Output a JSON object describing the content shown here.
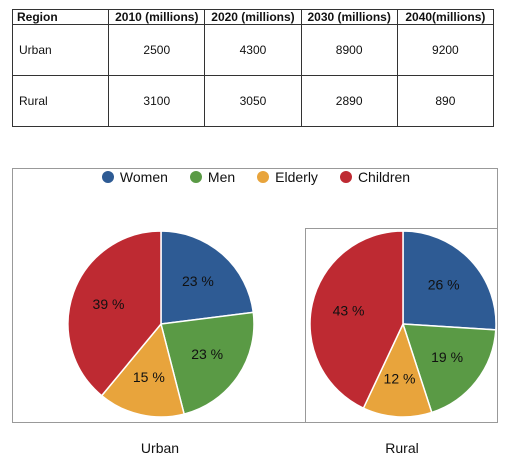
{
  "table": {
    "headers": [
      "Region",
      "2010 (millions)",
      "2020 (millions)",
      "2030 (millions)",
      "2040(millions)"
    ],
    "rows": [
      [
        "Urban",
        "2500",
        "4300",
        "8900",
        "9200"
      ],
      [
        "Rural",
        "3100",
        "3050",
        "2890",
        "890"
      ]
    ]
  },
  "legend": [
    {
      "label": "Women",
      "color": "#2e5b94"
    },
    {
      "label": "Men",
      "color": "#5a9a45"
    },
    {
      "label": "Elderly",
      "color": "#e8a43c"
    },
    {
      "label": "Children",
      "color": "#be2a32"
    }
  ],
  "chart_data": [
    {
      "type": "pie",
      "title": "",
      "caption": "Urban",
      "categories": [
        "Women",
        "Men",
        "Elderly",
        "Children"
      ],
      "values": [
        23,
        23,
        15,
        39
      ],
      "labels": [
        "23 %",
        "23 %",
        "15 %",
        "39 %"
      ]
    },
    {
      "type": "pie",
      "title": "",
      "caption": "Rural",
      "categories": [
        "Women",
        "Men",
        "Elderly",
        "Children"
      ],
      "values": [
        26,
        19,
        12,
        43
      ],
      "labels": [
        "26 %",
        "19 %",
        "12 %",
        "43 %"
      ]
    }
  ]
}
